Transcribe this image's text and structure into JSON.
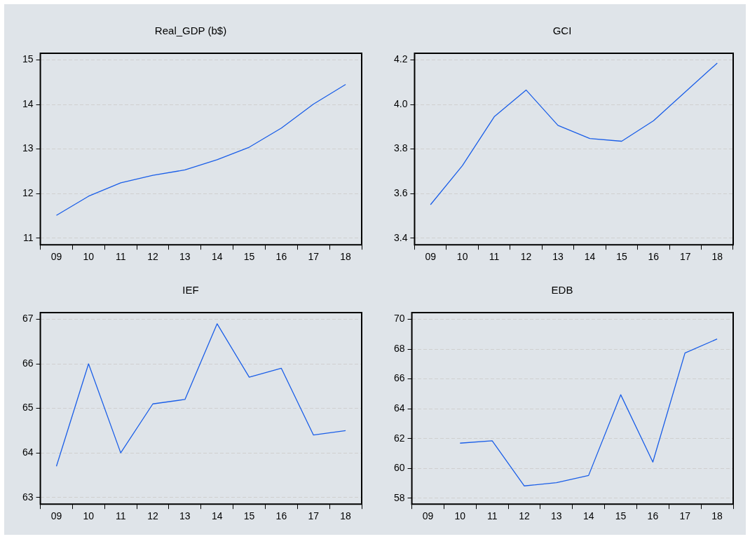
{
  "chart_data": [
    {
      "type": "line",
      "title": "Real_GDP (b$)",
      "categories": [
        "09",
        "10",
        "11",
        "12",
        "13",
        "14",
        "15",
        "16",
        "17",
        "18"
      ],
      "series": [
        {
          "color": "#1a5ee8",
          "values": [
            11.51,
            11.94,
            12.24,
            12.41,
            12.53,
            12.76,
            13.04,
            13.47,
            14.01,
            14.45
          ]
        }
      ],
      "ylim": [
        10.85,
        15.15
      ],
      "yticks": [
        11,
        12,
        13,
        14,
        15
      ],
      "grid": "y",
      "legend": false,
      "marker": "none"
    },
    {
      "type": "line",
      "title": "GCI",
      "categories": [
        "09",
        "10",
        "11",
        "12",
        "13",
        "14",
        "15",
        "16",
        "17",
        "18"
      ],
      "series": [
        {
          "color": "#1a5ee8",
          "values": [
            3.55,
            3.725,
            3.945,
            4.065,
            3.906,
            3.847,
            3.835,
            3.927,
            4.057,
            4.186
          ]
        }
      ],
      "ylim": [
        3.37,
        4.23
      ],
      "yticks": [
        {
          "value": 3.4,
          "label": "3.4"
        },
        {
          "value": 3.6,
          "label": "3.6"
        },
        {
          "value": 3.8,
          "label": "3.8"
        },
        {
          "value": 4.0,
          "label": "4.0"
        },
        {
          "value": 4.2,
          "label": "4.2"
        }
      ],
      "grid": "y",
      "legend": false,
      "marker": "none"
    },
    {
      "type": "line",
      "title": "IEF",
      "categories": [
        "09",
        "10",
        "11",
        "12",
        "13",
        "14",
        "15",
        "16",
        "17",
        "18"
      ],
      "series": [
        {
          "color": "#1a5ee8",
          "values": [
            63.7,
            66.0,
            64.0,
            65.1,
            65.2,
            66.9,
            65.7,
            65.9,
            64.4,
            64.5
          ]
        }
      ],
      "ylim": [
        62.85,
        67.15
      ],
      "yticks": [
        63,
        64,
        65,
        66,
        67
      ],
      "grid": "y",
      "legend": false,
      "marker": "none"
    },
    {
      "type": "line",
      "title": "EDB",
      "categories": [
        "09",
        "10",
        "11",
        "12",
        "13",
        "14",
        "15",
        "16",
        "17",
        "18"
      ],
      "series": [
        {
          "color": "#1a5ee8",
          "values": [
            null,
            61.69,
            61.85,
            58.82,
            59.04,
            59.52,
            64.94,
            60.42,
            67.74,
            68.68
          ]
        }
      ],
      "ylim": [
        57.6,
        70.45
      ],
      "yticks": [
        58,
        60,
        62,
        64,
        66,
        68,
        70
      ],
      "grid": "y",
      "legend": false,
      "marker": "none"
    }
  ]
}
